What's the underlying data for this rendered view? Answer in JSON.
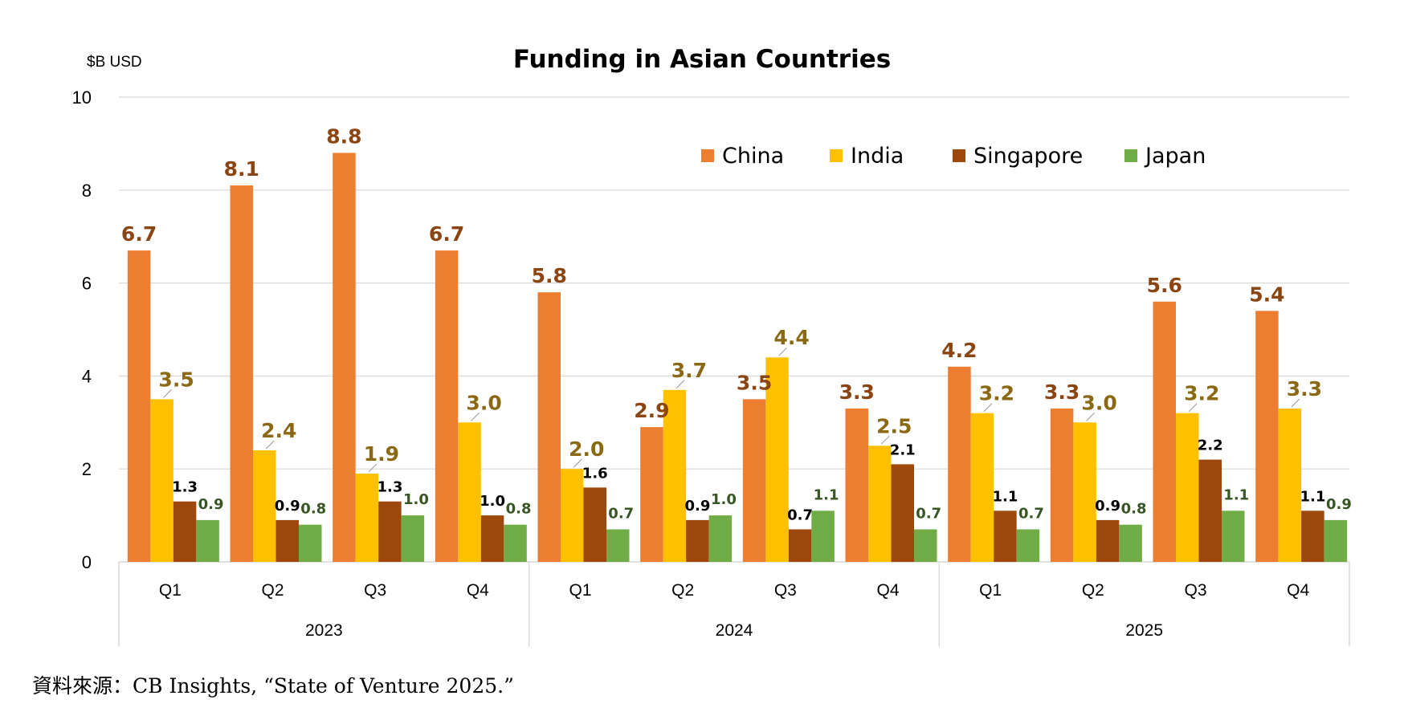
{
  "source_note": "資料來源：CB Insights, “State of Venture 2025.”",
  "chart_data": {
    "type": "bar",
    "title": "Funding in Asian Countries",
    "ylabel": "$B USD",
    "xlabel": "",
    "ylim": [
      0,
      10
    ],
    "yticks": [
      "0",
      "2",
      "4",
      "6",
      "8",
      "10"
    ],
    "grid": true,
    "legend_position": "top-right",
    "groups": [
      {
        "label": "2023",
        "quarters": [
          "Q1",
          "Q2",
          "Q3",
          "Q4"
        ]
      },
      {
        "label": "2024",
        "quarters": [
          "Q1",
          "Q2",
          "Q3",
          "Q4"
        ]
      },
      {
        "label": "2025",
        "quarters": [
          "Q1",
          "Q2",
          "Q3",
          "Q4"
        ]
      }
    ],
    "series": [
      {
        "name": "China",
        "color": "#ED7D31",
        "label_color": "#8B4513",
        "values": [
          6.7,
          8.1,
          8.8,
          6.7,
          5.8,
          2.9,
          3.5,
          3.3,
          4.2,
          3.3,
          5.6,
          5.4
        ],
        "labels": [
          "6.7",
          "8.1",
          "8.8",
          "6.7",
          "5.8",
          "2.9",
          "3.5",
          "3.3",
          "4.2",
          "3.3",
          "5.6",
          "5.4"
        ]
      },
      {
        "name": "India",
        "color": "#FFC000",
        "label_color": "#8B6914",
        "values": [
          3.5,
          2.4,
          1.9,
          3.0,
          2.0,
          3.7,
          4.4,
          2.5,
          3.2,
          3.0,
          3.2,
          3.3
        ],
        "labels": [
          "3.5",
          "2.4",
          "1.9",
          "3.0",
          "2.0",
          "3.7",
          "4.4",
          "2.5",
          "3.2",
          "3.0",
          "3.2",
          "3.3"
        ]
      },
      {
        "name": "Singapore",
        "color": "#9E480E",
        "label_color": "#000000",
        "values": [
          1.3,
          0.9,
          1.3,
          1.0,
          1.6,
          0.9,
          0.7,
          2.1,
          1.1,
          0.9,
          2.2,
          1.1
        ],
        "labels": [
          "1.3",
          "0.9",
          "1.3",
          "1.0",
          "1.6",
          "0.9",
          "0.7",
          "2.1",
          "1.1",
          "0.9",
          "2.2",
          "1.1"
        ]
      },
      {
        "name": "Japan",
        "color": "#70AD47",
        "label_color": "#375623",
        "values": [
          0.9,
          0.8,
          1.0,
          0.8,
          0.7,
          1.0,
          1.1,
          0.7,
          0.7,
          0.8,
          1.1,
          0.9
        ],
        "labels": [
          "0.9",
          "0.8",
          "1.0",
          "0.8",
          "0.7",
          "1.0",
          "1.1",
          "0.7",
          "0.7",
          "0.8",
          "1.1",
          "0.9"
        ]
      }
    ]
  }
}
